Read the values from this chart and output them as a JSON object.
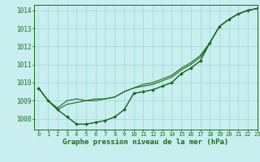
{
  "title": "Graphe pression niveau de la mer (hPa)",
  "background_color": "#c8eef0",
  "grid_color": "#aadddd",
  "line_color": "#1a6b1a",
  "xlim": [
    -0.5,
    23
  ],
  "ylim": [
    1007.4,
    1014.3
  ],
  "yticks": [
    1008,
    1009,
    1010,
    1011,
    1012,
    1013,
    1014
  ],
  "xticks": [
    0,
    1,
    2,
    3,
    4,
    5,
    6,
    7,
    8,
    9,
    10,
    11,
    12,
    13,
    14,
    15,
    16,
    17,
    18,
    19,
    20,
    21,
    22,
    23
  ],
  "series": [
    {
      "x": [
        0,
        1,
        2,
        3,
        4,
        5,
        6,
        7,
        8,
        9,
        10,
        11,
        12,
        13,
        14,
        15,
        16,
        17,
        18,
        19,
        20,
        21,
        22,
        23
      ],
      "y": [
        1009.7,
        1009.0,
        1008.5,
        1008.1,
        1007.7,
        1007.7,
        1007.8,
        1007.9,
        1008.1,
        1008.5,
        1009.4,
        1009.5,
        1009.6,
        1009.8,
        1010.0,
        1010.5,
        1010.8,
        1011.2,
        1012.2,
        1013.1,
        1013.5,
        1013.8,
        1014.0,
        1014.1
      ],
      "marker": "+"
    },
    {
      "x": [
        0,
        1,
        2,
        3,
        4,
        5,
        6,
        7,
        8,
        9,
        10,
        11,
        12,
        13,
        14,
        15,
        16,
        17,
        18,
        19,
        20,
        21,
        22,
        23
      ],
      "y": [
        1009.7,
        1009.0,
        1008.6,
        1009.0,
        1009.1,
        1009.0,
        1009.1,
        1009.1,
        1009.2,
        1009.5,
        1009.7,
        1009.9,
        1010.0,
        1010.2,
        1010.4,
        1010.8,
        1011.1,
        1011.5,
        1012.2,
        1013.1,
        1013.5,
        1013.8,
        1014.0,
        1014.1
      ],
      "marker": null
    },
    {
      "x": [
        0,
        1,
        2,
        3,
        4,
        5,
        6,
        7,
        8,
        9,
        10,
        11,
        12,
        13,
        14,
        15,
        16,
        17,
        18,
        19,
        20,
        21,
        22,
        23
      ],
      "y": [
        1009.7,
        1009.0,
        1008.5,
        1008.8,
        1008.9,
        1009.0,
        1009.0,
        1009.1,
        1009.2,
        1009.5,
        1009.7,
        1009.8,
        1009.9,
        1010.1,
        1010.3,
        1010.7,
        1011.0,
        1011.4,
        1012.2,
        1013.1,
        1013.5,
        1013.8,
        1014.0,
        1014.1
      ],
      "marker": null
    },
    {
      "x": [
        0,
        1,
        2,
        3,
        4,
        5,
        6,
        7,
        8,
        9,
        10,
        11,
        12,
        13,
        14,
        15,
        16,
        17,
        18,
        19,
        20,
        21,
        22,
        23
      ],
      "y": [
        1009.7,
        1009.0,
        1008.5,
        1008.1,
        1007.7,
        1007.7,
        1007.8,
        1007.9,
        1008.1,
        1008.5,
        1009.4,
        1009.5,
        1009.6,
        1009.8,
        1010.0,
        1010.5,
        1010.8,
        1011.2,
        1012.2,
        1013.1,
        1013.5,
        1013.8,
        1014.0,
        1014.1
      ],
      "marker": "D"
    }
  ],
  "xlabel_fontsize": 6.5,
  "ytick_fontsize": 5.5,
  "xtick_fontsize": 5.0
}
